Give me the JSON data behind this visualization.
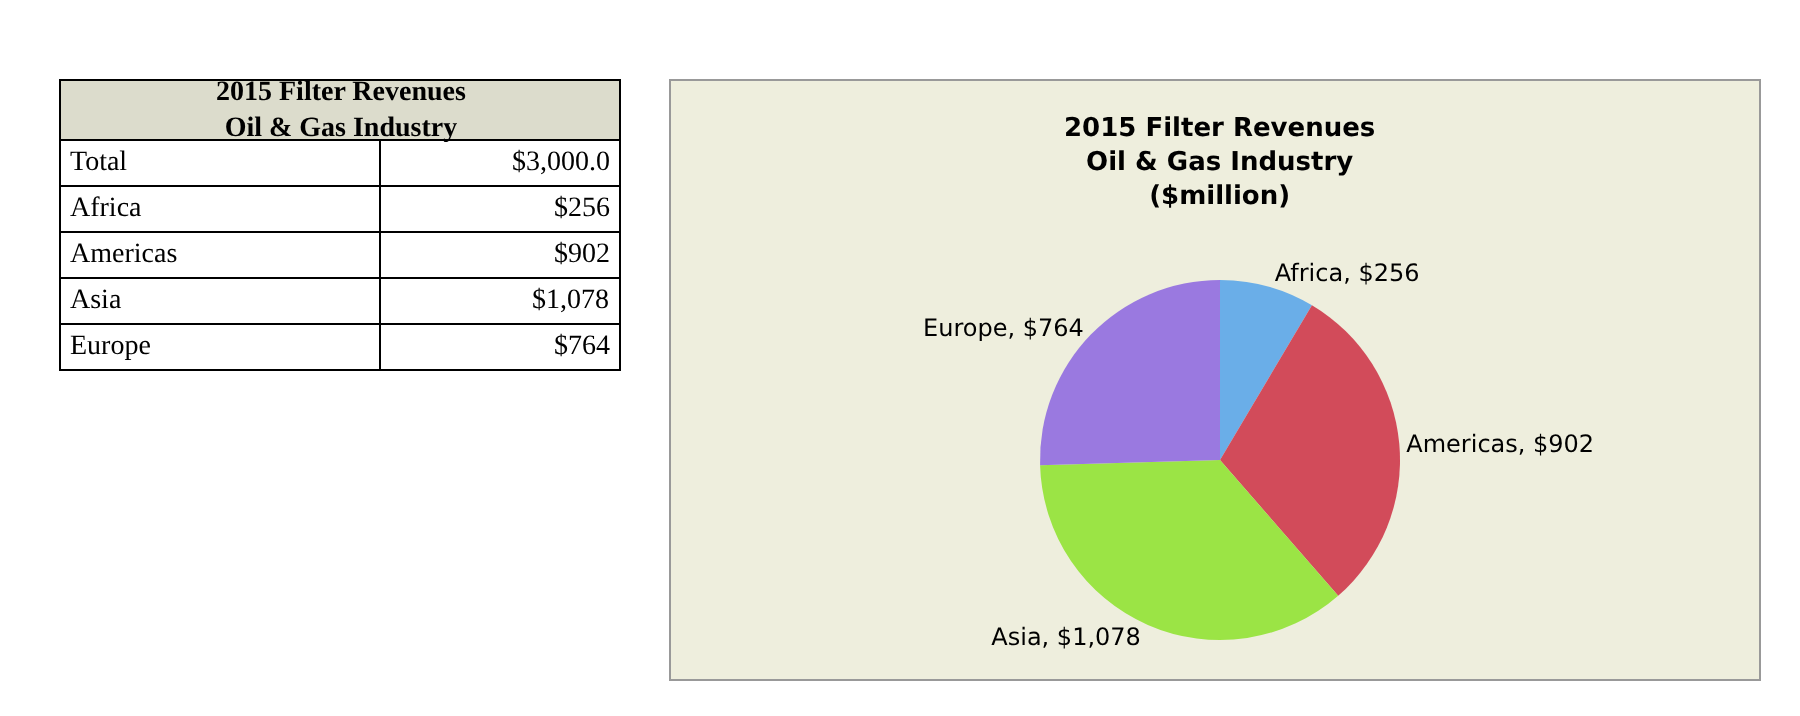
{
  "chart_data": [
    {
      "type": "pie",
      "title": "2015 Filter Revenues\nOil & Gas Industry\n($million)",
      "categories": [
        "Africa",
        "Americas",
        "Asia",
        "Europe"
      ],
      "values": [
        256,
        902,
        1078,
        764
      ],
      "colors": [
        "#6aaee8",
        "#d24b5a",
        "#9be445",
        "#9a79e0"
      ],
      "value_labels": [
        "$256",
        "$902",
        "$1,078",
        "$764"
      ]
    },
    {
      "type": "other",
      "title": "2015 Filter Revenues\nOil & Gas Industry",
      "categories": [
        "Total",
        "Africa",
        "Americas",
        "Asia",
        "Europe"
      ],
      "value_labels": [
        "$3,000.0",
        "$256",
        "$902",
        "$1,078",
        "$764"
      ]
    }
  ]
}
